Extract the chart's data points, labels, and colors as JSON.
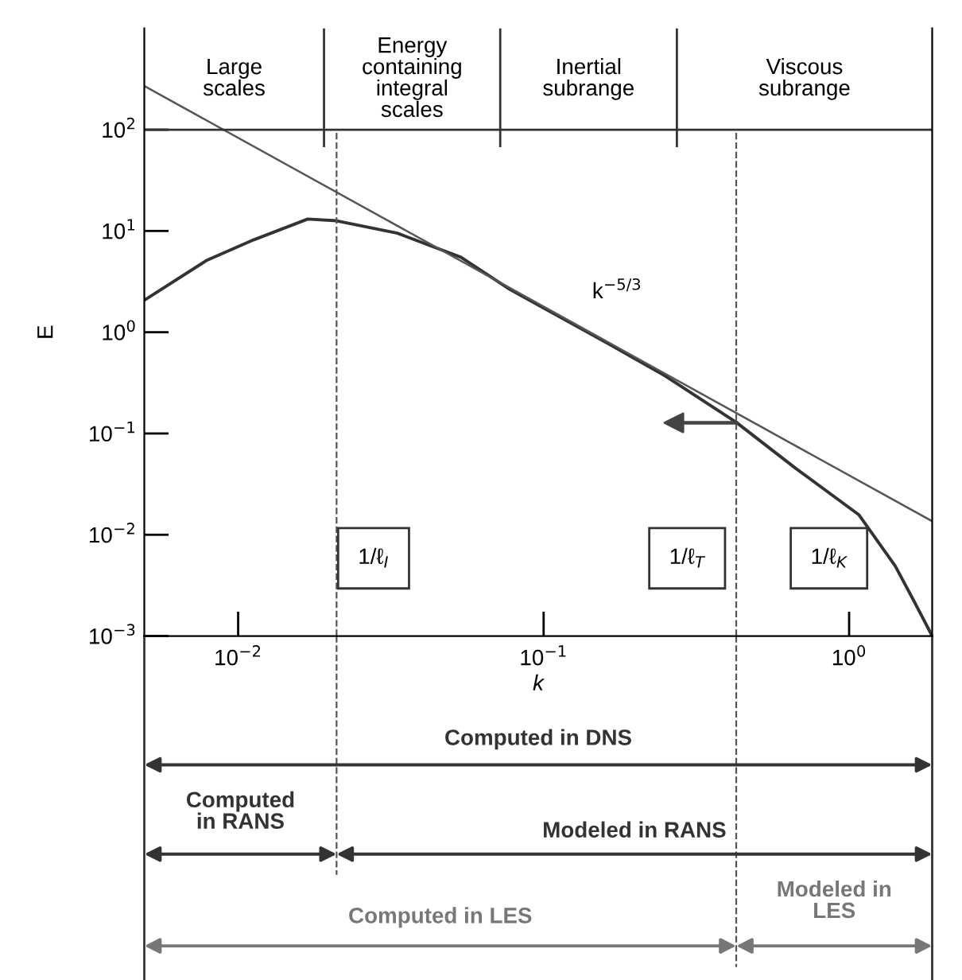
{
  "chart_data": {
    "type": "line",
    "xlabel": "k",
    "ylabel": "E",
    "series": [
      {
        "color": "#333333",
        "x": [
          0.00493,
          0.00787,
          0.01127,
          0.0169,
          0.021,
          0.0332,
          0.0536,
          0.0767,
          0.158,
          0.25,
          0.427,
          0.665,
          1.075,
          1.416,
          1.64,
          1.87
        ],
        "values": [
          2.07,
          5.1,
          8.2,
          13.1,
          12.6,
          9.5,
          5.5,
          2.7,
          0.81,
          0.37,
          0.129,
          0.0458,
          0.0158,
          0.0049,
          0.00214,
          0.001
        ]
      },
      {
        "color": "#555555",
        "x": [
          0.00493,
          1.87
        ],
        "values": [
          270,
          0.0136
        ]
      }
    ],
    "xlim": [
      0.00493,
      1.87
    ],
    "ylim": [
      0.001,
      1000
    ],
    "xticks": [
      {
        "value": 0.01,
        "label": "10$^{−2}$"
      },
      {
        "value": 0.1,
        "label": "10$^{−1}$"
      },
      {
        "value": 1,
        "label": "10$^{0}$"
      }
    ],
    "yticks": [
      {
        "value": 0.001,
        "label": "10$^{−3}$"
      },
      {
        "value": 0.01,
        "label": "10$^{−2}$"
      },
      {
        "value": 0.1,
        "label": "10$^{−1}$"
      },
      {
        "value": 1,
        "label": "10$^{0}$"
      },
      {
        "value": 10,
        "label": "10$^{1}$"
      },
      {
        "value": 100,
        "label": "10$^{2}$"
      }
    ],
    "log": "xy",
    "ref_lines": [
      {
        "axis": "x",
        "value": 0.021,
        "line_style": "dashed"
      },
      {
        "axis": "x",
        "value": 0.427,
        "line_style": "dashed"
      },
      {
        "axis": "y",
        "value": 100
      },
      {
        "axis": "x",
        "value": 0.0191,
        "line_style": "solid"
      },
      {
        "axis": "x",
        "value": 0.0721,
        "line_style": "solid"
      },
      {
        "axis": "x",
        "value": 0.273,
        "line_style": "solid"
      }
    ],
    "annotations": [
      "Large\nscales",
      "Energy\ncontaining\nintegral\nscales",
      "Inertial\nsubrange",
      "Viscous\nsubrange",
      "k$^{−5/3}$",
      "1/ℓ$_{I}$",
      "1/ℓ$_{T}$",
      "1/ℓ$_{K}$",
      "Computed in DNS",
      "Computed\nin RANS",
      "Modeled in RANS",
      "Computed in LES",
      "Modeled in\nLES"
    ],
    "grid": false,
    "legend": false,
    "marker": "none",
    "line_style": "solid"
  }
}
